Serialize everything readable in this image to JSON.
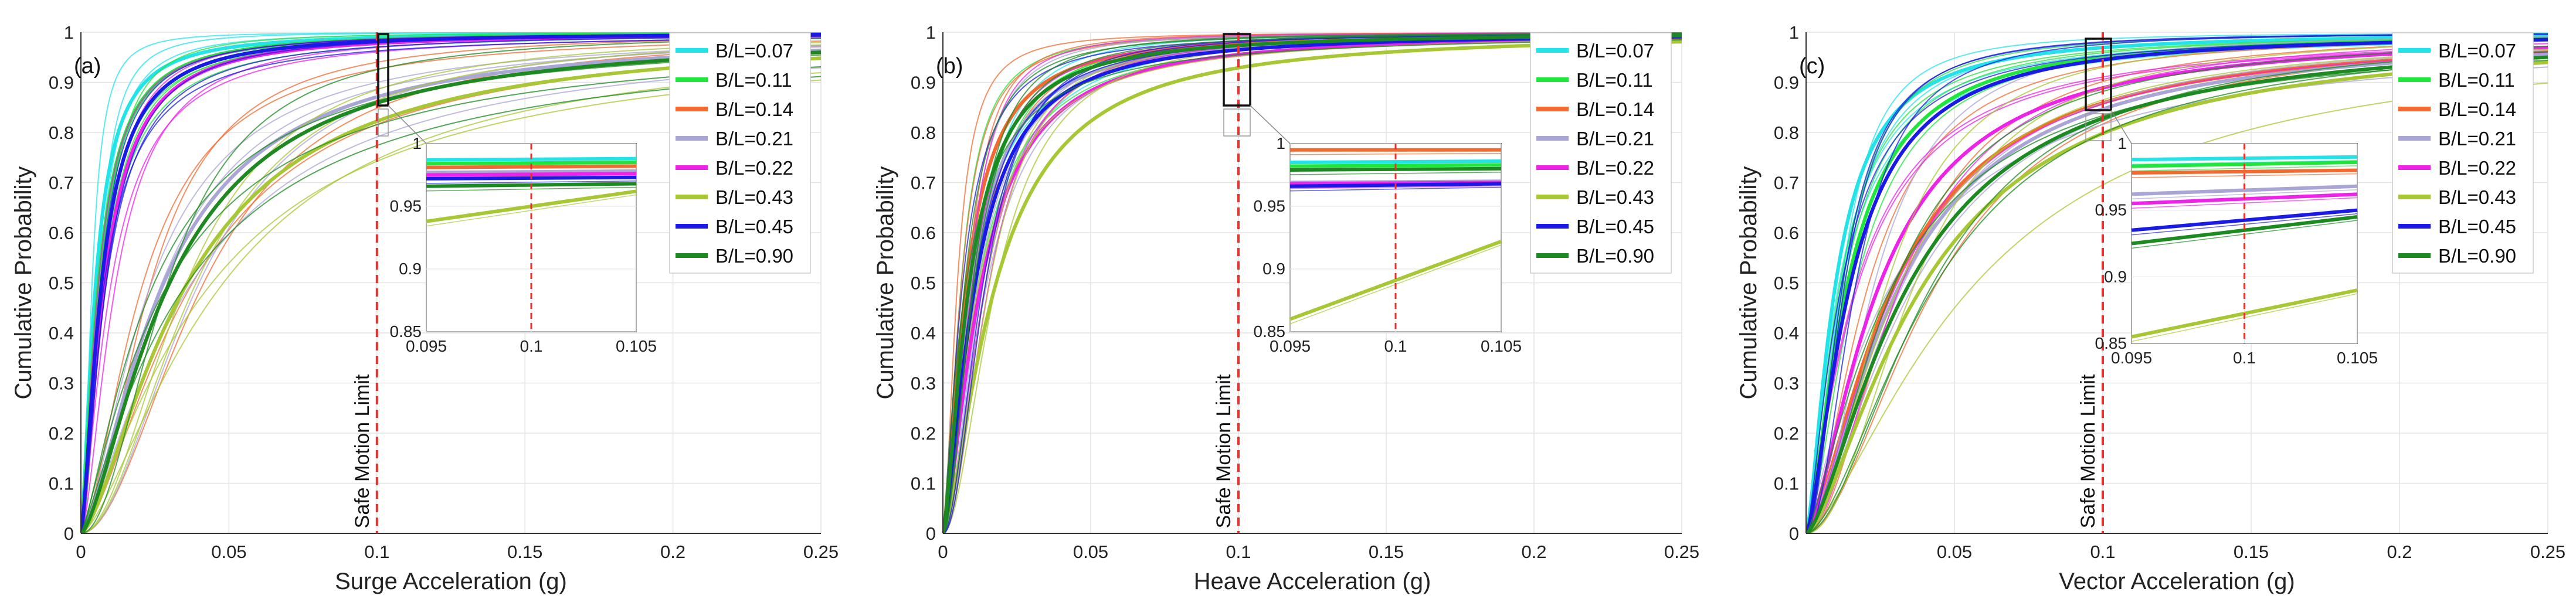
{
  "chart_data": [
    {
      "type": "line",
      "panel_label": "(a)",
      "xlabel": "Surge Acceleration (g)",
      "ylabel": "Cumulative Probability",
      "xlim": [
        0,
        0.25
      ],
      "ylim": [
        0,
        1
      ],
      "xticks": [
        "0",
        "0.05",
        "0.1",
        "0.15",
        "0.2",
        "0.25"
      ],
      "yticks": [
        "0",
        "0.1",
        "0.2",
        "0.3",
        "0.4",
        "0.5",
        "0.6",
        "0.7",
        "0.8",
        "0.9",
        "1"
      ],
      "reference_line": {
        "x": 0.1,
        "label": "Safe Motion Limit",
        "color": "#e8322d"
      },
      "series": [
        {
          "name": "B/L=0.07",
          "color": "#22e4e8",
          "median_g": 0.005,
          "spread": 1.5
        },
        {
          "name": "B/L=0.11",
          "color": "#1fe63a",
          "median_g": 0.006,
          "spread": 1.5
        },
        {
          "name": "B/L=0.14",
          "color": "#f26a30",
          "median_g": 0.03,
          "spread": 1.5
        },
        {
          "name": "B/L=0.21",
          "color": "#a9a6d6",
          "median_g": 0.028,
          "spread": 1.5
        },
        {
          "name": "B/L=0.22",
          "color": "#ee22e8",
          "median_g": 0.008,
          "spread": 1.5
        },
        {
          "name": "B/L=0.43",
          "color": "#a8c734",
          "median_g": 0.036,
          "spread": 1.5
        },
        {
          "name": "B/L=0.45",
          "color": "#1a1ae8",
          "median_g": 0.007,
          "spread": 1.5
        },
        {
          "name": "B/L=0.90",
          "color": "#1b8a20",
          "median_g": 0.03,
          "spread": 1.5
        }
      ],
      "inset": {
        "xlim": [
          0.095,
          0.105
        ],
        "ylim": [
          0.85,
          1
        ],
        "xticks": [
          "0.095",
          "0.1",
          "0.105"
        ],
        "yticks": [
          "0.85",
          "0.9",
          "0.95",
          "1"
        ],
        "lines_at_x": [
          {
            "series": "B/L=0.07",
            "y0": 0.987,
            "y1": 0.988
          },
          {
            "series": "B/L=0.11",
            "y0": 0.984,
            "y1": 0.985
          },
          {
            "series": "B/L=0.14",
            "y0": 0.981,
            "y1": 0.982
          },
          {
            "series": "B/L=0.21",
            "y0": 0.977,
            "y1": 0.978
          },
          {
            "series": "B/L=0.22",
            "y0": 0.975,
            "y1": 0.976
          },
          {
            "series": "B/L=0.43",
            "y0": 0.938,
            "y1": 0.962
          },
          {
            "series": "B/L=0.45",
            "y0": 0.972,
            "y1": 0.973
          },
          {
            "series": "B/L=0.90",
            "y0": 0.966,
            "y1": 0.968
          }
        ]
      }
    },
    {
      "type": "line",
      "panel_label": "(b)",
      "xlabel": "Heave Acceleration (g)",
      "ylabel": "Cumulative Probability",
      "xlim": [
        0,
        0.25
      ],
      "ylim": [
        0,
        1
      ],
      "xticks": [
        "0",
        "0.05",
        "0.1",
        "0.15",
        "0.2",
        "0.25"
      ],
      "yticks": [
        "0",
        "0.1",
        "0.2",
        "0.3",
        "0.4",
        "0.5",
        "0.6",
        "0.7",
        "0.8",
        "0.9",
        "1"
      ],
      "reference_line": {
        "x": 0.1,
        "label": "Safe Motion Limit",
        "color": "#e8322d"
      },
      "series": [
        {
          "name": "B/L=0.07",
          "color": "#22e4e8",
          "median_g": 0.01,
          "spread": 1.5
        },
        {
          "name": "B/L=0.11",
          "color": "#1fe63a",
          "median_g": 0.01,
          "spread": 1.5
        },
        {
          "name": "B/L=0.14",
          "color": "#f26a30",
          "median_g": 0.008,
          "spread": 1.5
        },
        {
          "name": "B/L=0.21",
          "color": "#a9a6d6",
          "median_g": 0.01,
          "spread": 1.5
        },
        {
          "name": "B/L=0.22",
          "color": "#ee22e8",
          "median_g": 0.013,
          "spread": 1.5
        },
        {
          "name": "B/L=0.43",
          "color": "#a8c734",
          "median_g": 0.018,
          "spread": 1.5
        },
        {
          "name": "B/L=0.45",
          "color": "#1a1ae8",
          "median_g": 0.011,
          "spread": 1.5
        },
        {
          "name": "B/L=0.90",
          "color": "#1b8a20",
          "median_g": 0.009,
          "spread": 1.5
        }
      ],
      "inset": {
        "xlim": [
          0.095,
          0.105
        ],
        "ylim": [
          0.85,
          1
        ],
        "xticks": [
          "0.095",
          "0.1",
          "0.105"
        ],
        "yticks": [
          "0.85",
          "0.9",
          "0.95",
          "1"
        ],
        "lines_at_x": [
          {
            "series": "B/L=0.07",
            "y0": 0.985,
            "y1": 0.986
          },
          {
            "series": "B/L=0.11",
            "y0": 0.982,
            "y1": 0.983
          },
          {
            "series": "B/L=0.14",
            "y0": 0.995,
            "y1": 0.995
          },
          {
            "series": "B/L=0.21",
            "y0": 0.969,
            "y1": 0.97
          },
          {
            "series": "B/L=0.22",
            "y0": 0.968,
            "y1": 0.969
          },
          {
            "series": "B/L=0.43",
            "y0": 0.86,
            "y1": 0.922
          },
          {
            "series": "B/L=0.45",
            "y0": 0.966,
            "y1": 0.968
          },
          {
            "series": "B/L=0.90",
            "y0": 0.979,
            "y1": 0.98
          }
        ]
      }
    },
    {
      "type": "line",
      "panel_label": "(c)",
      "xlabel": "Vector Acceleration (g)",
      "ylabel": "Cumulative Probability",
      "xlim": [
        0,
        0.25
      ],
      "ylim": [
        0,
        1
      ],
      "xticks": [
        "0.05",
        "0.1",
        "0.15",
        "0.2",
        "0.25"
      ],
      "yticks": [
        "0",
        "0.1",
        "0.2",
        "0.3",
        "0.4",
        "0.5",
        "0.6",
        "0.7",
        "0.8",
        "0.9",
        "1"
      ],
      "reference_line": {
        "x": 0.1,
        "label": "Safe Motion Limit",
        "color": "#e8322d"
      },
      "series": [
        {
          "name": "B/L=0.07",
          "color": "#22e4e8",
          "median_g": 0.01,
          "spread": 1.5
        },
        {
          "name": "B/L=0.11",
          "color": "#1fe63a",
          "median_g": 0.014,
          "spread": 1.5
        },
        {
          "name": "B/L=0.14",
          "color": "#f26a30",
          "median_g": 0.03,
          "spread": 1.5
        },
        {
          "name": "B/L=0.21",
          "color": "#a9a6d6",
          "median_g": 0.032,
          "spread": 1.5
        },
        {
          "name": "B/L=0.22",
          "color": "#ee22e8",
          "median_g": 0.025,
          "spread": 1.5
        },
        {
          "name": "B/L=0.43",
          "color": "#a8c734",
          "median_g": 0.04,
          "spread": 1.5
        },
        {
          "name": "B/L=0.45",
          "color": "#1a1ae8",
          "median_g": 0.015,
          "spread": 1.5
        },
        {
          "name": "B/L=0.90",
          "color": "#1b8a20",
          "median_g": 0.035,
          "spread": 1.5
        }
      ],
      "inset": {
        "xlim": [
          0.095,
          0.105
        ],
        "ylim": [
          0.85,
          1
        ],
        "xticks": [
          "0.095",
          "0.1",
          "0.105"
        ],
        "yticks": [
          "0.85",
          "0.9",
          "0.95",
          "1"
        ],
        "lines_at_x": [
          {
            "series": "B/L=0.07",
            "y0": 0.988,
            "y1": 0.99
          },
          {
            "series": "B/L=0.11",
            "y0": 0.983,
            "y1": 0.986
          },
          {
            "series": "B/L=0.14",
            "y0": 0.978,
            "y1": 0.98
          },
          {
            "series": "B/L=0.21",
            "y0": 0.962,
            "y1": 0.968
          },
          {
            "series": "B/L=0.22",
            "y0": 0.955,
            "y1": 0.962
          },
          {
            "series": "B/L=0.43",
            "y0": 0.855,
            "y1": 0.89
          },
          {
            "series": "B/L=0.45",
            "y0": 0.935,
            "y1": 0.95
          },
          {
            "series": "B/L=0.90",
            "y0": 0.925,
            "y1": 0.945
          }
        ]
      }
    }
  ]
}
